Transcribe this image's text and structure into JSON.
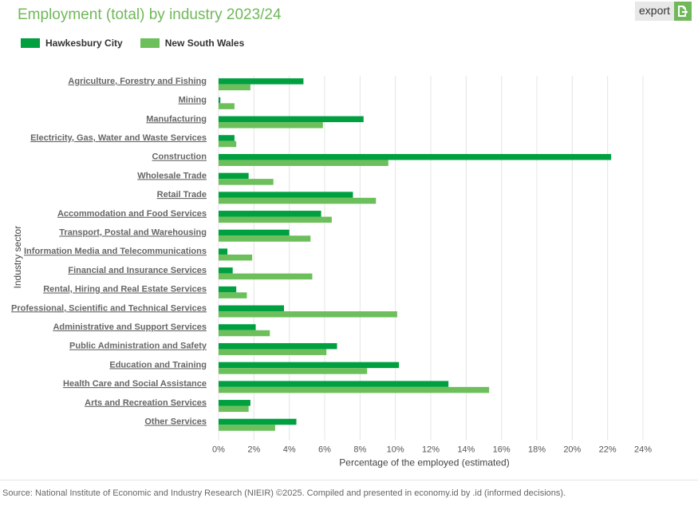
{
  "header": {
    "title": "Employment (total) by industry 2023/24",
    "export_label": "export"
  },
  "colors": {
    "primary_series": "#00a040",
    "secondary_series": "#6cbf5b",
    "title": "#70b85a"
  },
  "chart_data": {
    "type": "bar",
    "orientation": "horizontal",
    "ylabel": "Industry sector",
    "xlabel": "Percentage of the employed (estimated)",
    "xlim": [
      0,
      24
    ],
    "x_ticks": [
      "0%",
      "2%",
      "4%",
      "6%",
      "8%",
      "10%",
      "12%",
      "14%",
      "16%",
      "18%",
      "20%",
      "22%",
      "24%"
    ],
    "grid": "vertical",
    "legend_position": "top-left",
    "categories": [
      "Agriculture, Forestry and Fishing",
      "Mining",
      "Manufacturing",
      "Electricity, Gas, Water and Waste Services",
      "Construction",
      "Wholesale Trade",
      "Retail Trade",
      "Accommodation and Food Services",
      "Transport, Postal and Warehousing",
      "Information Media and Telecommunications",
      "Financial and Insurance Services",
      "Rental, Hiring and Real Estate Services",
      "Professional, Scientific and Technical Services",
      "Administrative and Support Services",
      "Public Administration and Safety",
      "Education and Training",
      "Health Care and Social Assistance",
      "Arts and Recreation Services",
      "Other Services"
    ],
    "series": [
      {
        "name": "Hawkesbury City",
        "values": [
          4.8,
          0.1,
          8.2,
          0.9,
          22.2,
          1.7,
          7.6,
          5.8,
          4.0,
          0.5,
          0.8,
          1.0,
          3.7,
          2.1,
          6.7,
          10.2,
          13.0,
          1.8,
          4.4
        ]
      },
      {
        "name": "New South Wales",
        "values": [
          1.8,
          0.9,
          5.9,
          1.0,
          9.6,
          3.1,
          8.9,
          6.4,
          5.2,
          1.9,
          5.3,
          1.6,
          10.1,
          2.9,
          6.1,
          8.4,
          15.3,
          1.7,
          3.2
        ]
      }
    ]
  },
  "footer": {
    "source": "Source: National Institute of Economic and Industry Research (NIEIR) ©2025. Compiled and presented in economy.id by .id (informed decisions)."
  }
}
